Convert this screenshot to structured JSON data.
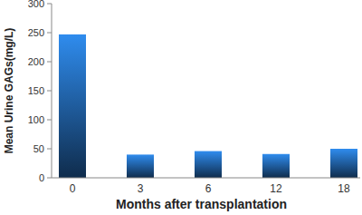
{
  "chart_data": {
    "type": "bar",
    "x_label": "Months after transplantation",
    "y_label": "Mean Urine GAGs(mg/L)",
    "categories": [
      "0",
      "3",
      "6",
      "12",
      "18"
    ],
    "values": [
      247,
      40,
      46,
      41,
      50
    ],
    "color": "#2b7fd8",
    "ylim": [
      0,
      300
    ],
    "yticks": [
      0,
      50,
      100,
      150,
      200,
      250,
      300
    ],
    "grid": false
  }
}
